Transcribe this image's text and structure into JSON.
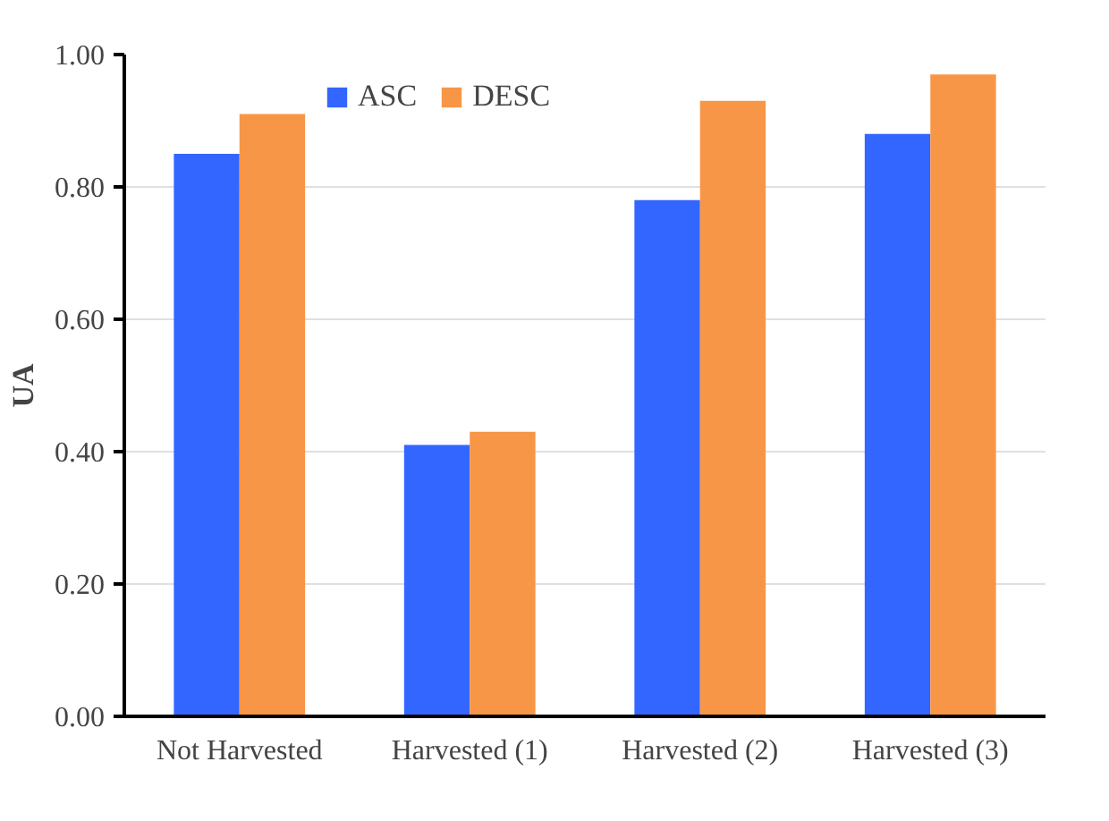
{
  "chart_data": {
    "type": "bar",
    "ylabel": "UA",
    "categories": [
      "Not Harvested",
      "Harvested (1)",
      "Harvested (2)",
      "Harvested (3)"
    ],
    "series": [
      {
        "name": "ASC",
        "color": "#3366ff",
        "values": [
          0.85,
          0.41,
          0.78,
          0.88
        ]
      },
      {
        "name": "DESC",
        "color": "#f79646",
        "values": [
          0.91,
          0.43,
          0.93,
          0.97
        ]
      }
    ],
    "ylim": [
      0,
      1
    ],
    "yticks": [
      {
        "value": 0,
        "label": "0.00"
      },
      {
        "value": 0.2,
        "label": "0.20"
      },
      {
        "value": 0.4,
        "label": "0.40"
      },
      {
        "value": 0.6,
        "label": "0.60"
      },
      {
        "value": 0.8,
        "label": "0.80"
      },
      {
        "value": 1,
        "label": "1.00"
      }
    ],
    "grid": "y",
    "legend": "top"
  }
}
